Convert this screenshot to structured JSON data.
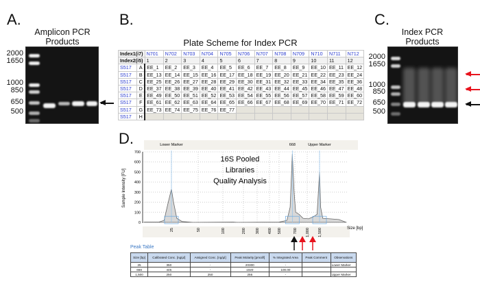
{
  "panel_a": {
    "label": "A.",
    "title_line1": "Amplicon PCR",
    "title_line2": "Products",
    "ladder": [
      "2000",
      "1650",
      "1000",
      "850",
      "650",
      "500"
    ]
  },
  "panel_b": {
    "label": "B.",
    "title": "Plate Scheme for Index PCR",
    "index1_label": "Index1(i7)",
    "index2_label": "Index2(i5)",
    "i7": [
      "N701",
      "N702",
      "N703",
      "N704",
      "N705",
      "N706",
      "N707",
      "N708",
      "N709",
      "N710",
      "N711",
      "N712"
    ],
    "columns": [
      "1",
      "2",
      "3",
      "4",
      "5",
      "6",
      "7",
      "8",
      "9",
      "10",
      "11",
      "12"
    ],
    "rows": [
      {
        "i5": "S517",
        "letter": "A",
        "wells": [
          "EE_1",
          "EE_2",
          "EE_3",
          "EE_4",
          "EE_5",
          "EE_6",
          "EE_7",
          "EE_8",
          "EE_9",
          "EE_10",
          "EE_11",
          "EE_12"
        ]
      },
      {
        "i5": "S517",
        "letter": "B",
        "wells": [
          "EE_13",
          "EE_14",
          "EE_15",
          "EE_16",
          "EE_17",
          "EE_18",
          "EE_19",
          "EE_20",
          "EE_21",
          "EE_22",
          "EE_23",
          "EE_24"
        ]
      },
      {
        "i5": "S517",
        "letter": "C",
        "wells": [
          "EE_25",
          "EE_26",
          "EE_27",
          "EE_28",
          "EE_29",
          "EE_30",
          "EE_31",
          "EE_32",
          "EE_33",
          "EE_34",
          "EE_35",
          "EE_36"
        ]
      },
      {
        "i5": "S517",
        "letter": "D",
        "wells": [
          "EE_37",
          "EE_38",
          "EE_39",
          "EE_40",
          "EE_41",
          "EE_42",
          "EE_43",
          "EE_44",
          "EE_45",
          "EE_46",
          "EE_47",
          "EE_48"
        ]
      },
      {
        "i5": "S517",
        "letter": "E",
        "wells": [
          "EE_49",
          "EE_50",
          "EE_51",
          "EE_52",
          "EE_53",
          "EE_54",
          "EE_55",
          "EE_56",
          "EE_57",
          "EE_58",
          "EE_59",
          "EE_60"
        ]
      },
      {
        "i5": "S517",
        "letter": "F",
        "wells": [
          "EE_61",
          "EE_62",
          "EE_63",
          "EE_64",
          "EE_65",
          "EE_66",
          "EE_67",
          "EE_68",
          "EE_69",
          "EE_70",
          "EE_71",
          "EE_72"
        ]
      },
      {
        "i5": "S517",
        "letter": "G",
        "wells": [
          "EE_73",
          "EE_74",
          "EE_75",
          "EE_76",
          "EE_77",
          "",
          "",
          "",
          "",
          "",
          "",
          ""
        ]
      },
      {
        "i5": "S517",
        "letter": "H",
        "wells": [
          "",
          "",
          "",
          "",
          "",
          "",
          "",
          "",
          "",
          "",
          "",
          ""
        ]
      }
    ]
  },
  "panel_c": {
    "label": "C.",
    "title_line1": "Index PCR",
    "title_line2": "Products",
    "ladder": [
      "2000",
      "1650",
      "1000",
      "850",
      "650",
      "500"
    ]
  },
  "panel_d": {
    "label": "D.",
    "annotation_line1": "16S Pooled",
    "annotation_line2": "Libraries",
    "annotation_line3": "Quality Analysis"
  },
  "chart_data": {
    "type": "line",
    "xlabel": "Size [bp]",
    "ylabel": "Sample Intensity [FU]",
    "ylim": [
      0,
      700
    ],
    "yticks": [
      0,
      100,
      200,
      300,
      400,
      500,
      600,
      700
    ],
    "xticks": [
      "25",
      "50",
      "100",
      "200",
      "300",
      "400",
      "500",
      "700",
      "1,000",
      "1,500"
    ],
    "peak_labels": [
      {
        "text": "Lower Marker",
        "x": 25
      },
      {
        "text": "668",
        "x": 668
      },
      {
        "text": "Upper Marker",
        "x": 1500
      }
    ],
    "trace": [
      [
        10,
        2
      ],
      [
        18,
        2
      ],
      [
        21,
        20
      ],
      [
        23,
        180
      ],
      [
        25,
        330
      ],
      [
        27,
        200
      ],
      [
        30,
        40
      ],
      [
        35,
        8
      ],
      [
        45,
        0
      ],
      [
        150,
        3
      ],
      [
        170,
        0
      ],
      [
        500,
        2
      ],
      [
        600,
        20
      ],
      [
        640,
        150
      ],
      [
        668,
        680
      ],
      [
        690,
        300
      ],
      [
        720,
        100
      ],
      [
        800,
        80
      ],
      [
        900,
        40
      ],
      [
        1050,
        35
      ],
      [
        1250,
        55
      ],
      [
        1400,
        80
      ],
      [
        1500,
        500
      ],
      [
        1600,
        150
      ],
      [
        1800,
        40
      ],
      [
        2500,
        35
      ],
      [
        3300,
        28
      ],
      [
        4000,
        0
      ]
    ]
  },
  "peak_table": {
    "title": "Peak Table",
    "headers": [
      "Size [bp]",
      "Calibrated Conc. [ng/µl]",
      "Assigned Conc. [ng/µl]",
      "Peak Molarity [pmol/l]",
      "% Integrated Area",
      "Peak Comment",
      "Observations"
    ],
    "rows": [
      [
        "25",
        "350",
        "-",
        "20300",
        "-",
        "",
        "Lower Marker"
      ],
      [
        "668",
        "445",
        "-",
        "1020",
        "100.00",
        "",
        ""
      ],
      [
        "1,500",
        "250",
        "250",
        "256",
        "-",
        "",
        "Upper Marker"
      ]
    ]
  },
  "colors": {
    "red_arrow": "#e8141e",
    "black_arrow": "#111111",
    "i7_blue": "#2a3ccf",
    "trace_fill": "#d8d8d8"
  }
}
